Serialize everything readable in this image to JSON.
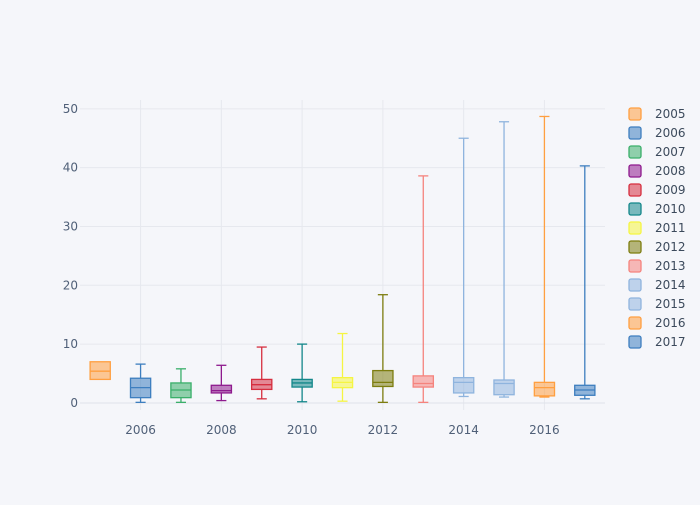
{
  "chart_data": {
    "type": "box",
    "title": "",
    "xlabel": "",
    "ylabel": "",
    "x_ticks": [
      2006,
      2008,
      2010,
      2012,
      2014,
      2016
    ],
    "y_ticks": [
      0,
      10,
      20,
      30,
      40,
      50
    ],
    "xlim": [
      2004.5,
      2017.5
    ],
    "ylim": [
      -1.2,
      51.5
    ],
    "grid": true,
    "legend_position": "right",
    "series": [
      {
        "name": "2005",
        "x": 2005,
        "min": 4.0,
        "q1": 4.0,
        "median": 5.4,
        "q3": 7.0,
        "max": 7.0,
        "color": "#ff9f40"
      },
      {
        "name": "2006",
        "x": 2006,
        "min": 0.1,
        "q1": 0.9,
        "median": 2.6,
        "q3": 4.2,
        "max": 6.6,
        "color": "#3d7ebf"
      },
      {
        "name": "2007",
        "x": 2007,
        "min": 0.1,
        "q1": 0.9,
        "median": 2.2,
        "q3": 3.4,
        "max": 5.8,
        "color": "#3aaf6a"
      },
      {
        "name": "2008",
        "x": 2008,
        "min": 0.4,
        "q1": 1.7,
        "median": 2.1,
        "q3": 3.0,
        "max": 6.4,
        "color": "#8e1a8e"
      },
      {
        "name": "2009",
        "x": 2009,
        "min": 0.7,
        "q1": 2.3,
        "median": 3.1,
        "q3": 4.0,
        "max": 9.5,
        "color": "#d62e3f"
      },
      {
        "name": "2010",
        "x": 2010,
        "min": 0.2,
        "q1": 2.7,
        "median": 3.4,
        "q3": 4.0,
        "max": 10.0,
        "color": "#13878a"
      },
      {
        "name": "2011",
        "x": 2011,
        "min": 0.3,
        "q1": 2.6,
        "median": 3.5,
        "q3": 4.3,
        "max": 11.8,
        "color": "#f5f542"
      },
      {
        "name": "2012",
        "x": 2012,
        "min": 0.1,
        "q1": 2.8,
        "median": 3.5,
        "q3": 5.5,
        "max": 18.4,
        "color": "#7d7d0f"
      },
      {
        "name": "2013",
        "x": 2013,
        "min": 0.1,
        "q1": 2.7,
        "median": 3.3,
        "q3": 4.6,
        "max": 38.6,
        "color": "#f5837d"
      },
      {
        "name": "2014",
        "x": 2014,
        "min": 1.1,
        "q1": 1.7,
        "median": 3.5,
        "q3": 4.3,
        "max": 45.0,
        "color": "#8fb4de"
      },
      {
        "name": "2015",
        "x": 2015,
        "min": 1.0,
        "q1": 1.4,
        "median": 3.3,
        "q3": 3.9,
        "max": 47.8,
        "color": "#8fb4de"
      },
      {
        "name": "2016",
        "x": 2016,
        "min": 1.0,
        "q1": 1.2,
        "median": 2.6,
        "q3": 3.5,
        "max": 48.7,
        "color": "#ff9f40"
      },
      {
        "name": "2017",
        "x": 2017,
        "min": 0.7,
        "q1": 1.3,
        "median": 2.2,
        "q3": 3.0,
        "max": 40.3,
        "color": "#3d7ebf"
      }
    ]
  }
}
